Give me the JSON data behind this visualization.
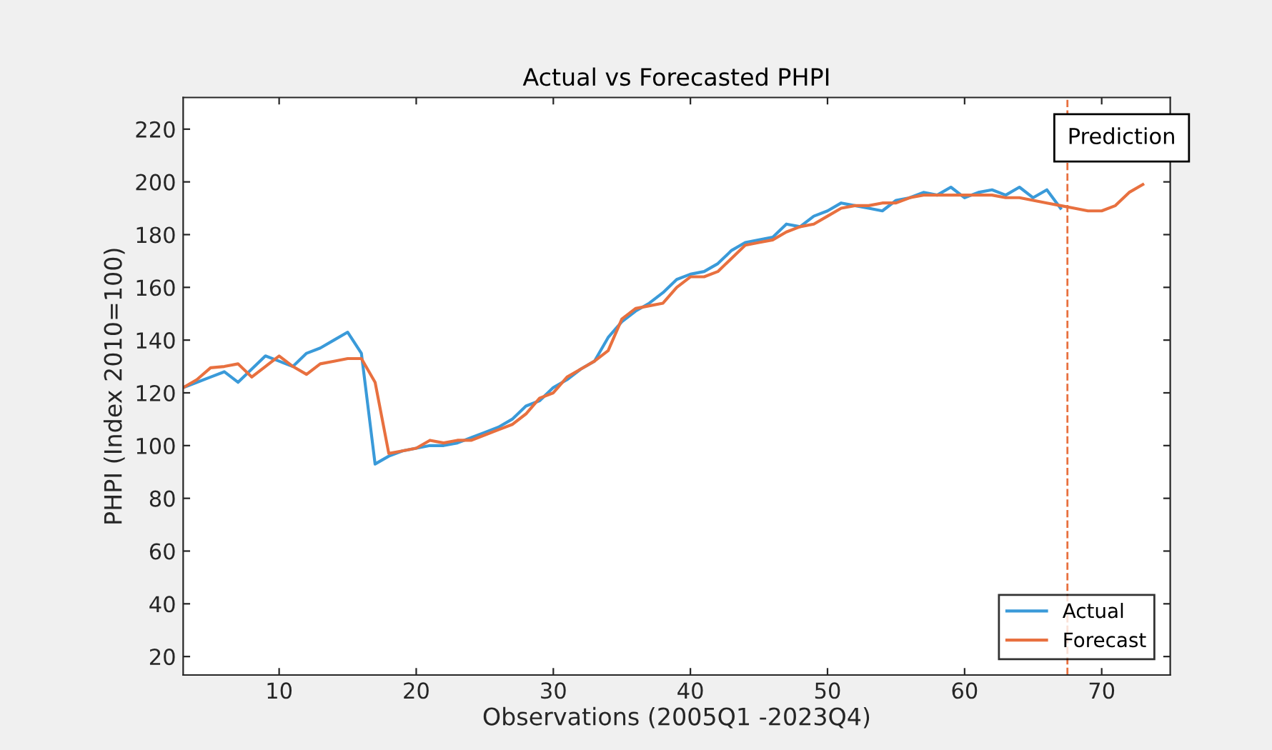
{
  "chart_data": {
    "type": "line",
    "title": "Actual vs Forecasted PHPI",
    "xlabel": "Observations (2005Q1 -2023Q4)",
    "ylabel": "PHPI (Index 2010=100)",
    "xlim": [
      3,
      75
    ],
    "ylim": [
      13,
      232
    ],
    "xticks": [
      10,
      20,
      30,
      40,
      50,
      60,
      70
    ],
    "yticks": [
      20,
      40,
      60,
      80,
      100,
      120,
      140,
      160,
      180,
      200,
      220
    ],
    "grid": false,
    "legend": "bottom right",
    "line_style": "solid",
    "marker": "none",
    "series": [
      {
        "name": "Actual",
        "color": "#3a9ad9",
        "x": [
          3,
          4,
          5,
          6,
          7,
          8,
          9,
          10,
          11,
          12,
          13,
          14,
          15,
          16,
          17,
          18,
          19,
          20,
          21,
          22,
          23,
          24,
          25,
          26,
          27,
          28,
          29,
          30,
          31,
          32,
          33,
          34,
          35,
          36,
          37,
          38,
          39,
          40,
          41,
          42,
          43,
          44,
          45,
          46,
          47,
          48,
          49,
          50,
          51,
          52,
          53,
          54,
          55,
          56,
          57,
          58,
          59,
          60,
          61,
          62,
          63,
          64,
          65,
          66,
          67
        ],
        "values": [
          122,
          124,
          126,
          128,
          124,
          129,
          134,
          132,
          130,
          135,
          137,
          140,
          143,
          135,
          93,
          96,
          98,
          99,
          100,
          100,
          101,
          103,
          105,
          107,
          110,
          115,
          117,
          122,
          125,
          129,
          132,
          141,
          147,
          151,
          154,
          158,
          163,
          165,
          166,
          169,
          174,
          177,
          178,
          179,
          184,
          183,
          187,
          189,
          192,
          191,
          190,
          189,
          193,
          194,
          196,
          195,
          198,
          194,
          196,
          197,
          195,
          198,
          194,
          197,
          190
        ]
      },
      {
        "name": "Forecast",
        "color": "#e8703f",
        "x": [
          3,
          4,
          5,
          6,
          7,
          8,
          9,
          10,
          11,
          12,
          13,
          14,
          15,
          16,
          17,
          18,
          19,
          20,
          21,
          22,
          23,
          24,
          25,
          26,
          27,
          28,
          29,
          30,
          31,
          32,
          33,
          34,
          35,
          36,
          37,
          38,
          39,
          40,
          41,
          42,
          43,
          44,
          45,
          46,
          47,
          48,
          49,
          50,
          51,
          52,
          53,
          54,
          55,
          56,
          57,
          58,
          59,
          60,
          61,
          62,
          63,
          64,
          65,
          66,
          67,
          68,
          69,
          70,
          71,
          72,
          73
        ],
        "values": [
          122,
          125,
          129.5,
          130,
          131,
          126,
          130,
          134,
          130,
          127,
          131,
          132,
          133,
          133,
          124,
          97,
          98,
          99,
          102,
          101,
          102,
          102,
          104,
          106,
          108,
          112,
          118,
          120,
          126,
          129,
          132,
          136,
          148,
          152,
          153,
          154,
          160,
          164,
          164,
          166,
          171,
          176,
          177,
          178,
          181,
          183,
          184,
          187,
          190,
          191,
          191,
          192,
          192,
          194,
          195,
          195,
          195,
          195,
          195,
          195,
          194,
          194,
          193,
          192,
          191,
          190,
          189,
          189,
          191,
          196,
          199
        ]
      }
    ],
    "ref_lines": [
      {
        "axis": "x",
        "value": 67.5,
        "label": "Prediction",
        "color": "#e8703f",
        "line_style": "dashed"
      }
    ]
  }
}
